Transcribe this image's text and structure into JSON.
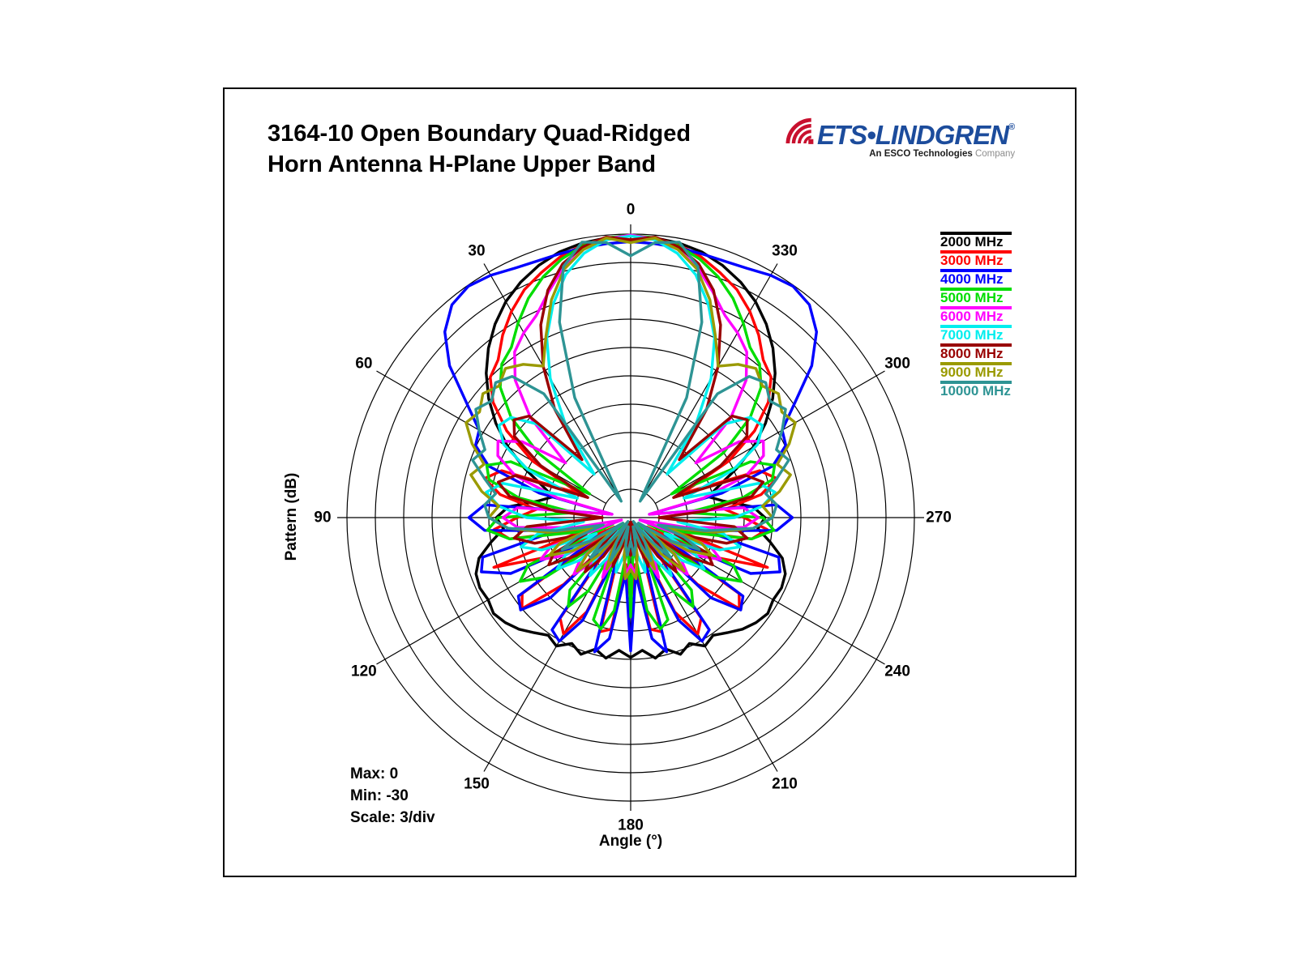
{
  "title": {
    "line1": "3164-10 Open Boundary Quad-Ridged",
    "line2": "Horn Antenna H-Plane Upper Band"
  },
  "logo": {
    "brand": "ETS•LINDGREN",
    "registered": "®",
    "tagline_bold": "An ESCO Technologies",
    "tagline_light": " Company",
    "brand_color": "#1C4C9C",
    "wave_color": "#C8102E"
  },
  "axes": {
    "radial_label": "Pattern  (dB)",
    "angle_label": "Angle  (°)"
  },
  "annotations": {
    "max": "Max: 0",
    "min": "Min: -30",
    "scale": "Scale: 3/div"
  },
  "chart_data": {
    "type": "line-polar",
    "title": "3164-10 Open Boundary Quad-Ridged Horn Antenna H-Plane Upper Band",
    "radial_axis_label": "Pattern (dB)",
    "angle_axis_label": "Angle (°)",
    "radial_max": 0,
    "radial_min": -30,
    "db_per_division": 3,
    "rings": 10,
    "grid_color": "#000000",
    "angle_labels_deg": [
      0,
      30,
      60,
      90,
      120,
      150,
      180,
      210,
      240,
      270,
      300,
      330
    ],
    "angle_direction": "counterclockwise-from-top",
    "sample_step_deg": 5,
    "mirror_symmetry": true,
    "values_unit": "dB relative to peak, sampled 0° to 180° from boresight, mirrored to 360°",
    "series": [
      {
        "name": "2000 MHz",
        "color": "#000000",
        "values": [
          -0.2,
          -0.3,
          -0.5,
          -0.9,
          -1.6,
          -2.5,
          -3.6,
          -5.0,
          -6.6,
          -8.4,
          -10.4,
          -12.6,
          -15.0,
          -17.6,
          -20.0,
          -21.5,
          -20.0,
          -17.0,
          -15.8,
          -16.5,
          -15.0,
          -13.4,
          -12.6,
          -12.4,
          -12.6,
          -12.3,
          -12.7,
          -13.3,
          -14.1,
          -14.8,
          -14.3,
          -15.3,
          -14.6,
          -15.6,
          -14.9,
          -15.9,
          -15.2
        ]
      },
      {
        "name": "3000 MHz",
        "color": "#FF0000",
        "values": [
          -0.15,
          -0.3,
          -0.7,
          -1.4,
          -2.4,
          -3.4,
          -4.8,
          -6.4,
          -8.2,
          -9.0,
          -11.0,
          -14.0,
          -18.0,
          -24.0,
          -15.5,
          -14.0,
          -16.0,
          -20.0,
          -18.0,
          -15.5,
          -17.0,
          -25.0,
          -14.6,
          -20.0,
          -28.0,
          -16.0,
          -15.0,
          -20.0,
          -28.0,
          -17.0,
          -15.8,
          -19.0,
          -27.0,
          -17.5,
          -18.0,
          -25.0,
          -21.0
        ]
      },
      {
        "name": "4000 MHz",
        "color": "#0000FF",
        "values": [
          -0.8,
          -0.9,
          -1.0,
          -1.1,
          -1.1,
          -0.9,
          -0.4,
          -0.1,
          -0.6,
          -2.2,
          -5.0,
          -8.8,
          -11.5,
          -11.9,
          -14.0,
          -20.0,
          -28.0,
          -14.5,
          -12.9,
          -14.5,
          -22.0,
          -13.8,
          -13.2,
          -16.0,
          -26.0,
          -15.5,
          -14.8,
          -18.0,
          -27.0,
          -15.5,
          -14.9,
          -18.0,
          -26.0,
          -15.3,
          -17.0,
          -24.0,
          -15.9
        ]
      },
      {
        "name": "5000 MHz",
        "color": "#00DD00",
        "values": [
          -0.1,
          -0.3,
          -0.8,
          -1.7,
          -2.9,
          -4.4,
          -6.2,
          -8.0,
          -8.8,
          -10.5,
          -13.5,
          -18.0,
          -25.0,
          -16.0,
          -13.8,
          -14.5,
          -18.0,
          -24.0,
          -16.0,
          -14.8,
          -17.0,
          -24.0,
          -28.0,
          -18.0,
          -16.5,
          -19.0,
          -26.0,
          -29.0,
          -20.0,
          -18.5,
          -21.0,
          -28.0,
          -18.5,
          -17.8,
          -20.0,
          -27.0,
          -19.5
        ]
      },
      {
        "name": "6000 MHz",
        "color": "#FF00FF",
        "values": [
          -0.1,
          -0.4,
          -1.2,
          -2.6,
          -4.6,
          -6.4,
          -7.4,
          -8.6,
          -11.0,
          -15.0,
          -21.0,
          -16.0,
          -13.8,
          -14.5,
          -17.0,
          -22.0,
          -28.0,
          -18.0,
          -16.5,
          -18.0,
          -24.0,
          -29.0,
          -21.0,
          -19.5,
          -22.0,
          -28.0,
          -23.0,
          -21.5,
          -24.0,
          -29.0,
          -25.0,
          -23.0,
          -26.0,
          -29.5,
          -26.0,
          -24.0,
          -25.0
        ]
      },
      {
        "name": "7000 MHz",
        "color": "#00EEEE",
        "values": [
          -0.2,
          -0.5,
          -1.6,
          -3.4,
          -6.0,
          -9.0,
          -13.0,
          -18.0,
          -24.0,
          -16.0,
          -13.5,
          -13.0,
          -14.5,
          -18.0,
          -24.0,
          -16.0,
          -14.5,
          -16.0,
          -19.0,
          -25.0,
          -20.0,
          -18.0,
          -20.0,
          -26.0,
          -22.0,
          -20.5,
          -23.0,
          -28.0,
          -24.0,
          -22.5,
          -25.0,
          -29.0,
          -26.0,
          -24.0,
          -26.0,
          -29.0,
          -27.0
        ]
      },
      {
        "name": "8000 MHz",
        "color": "#990000",
        "values": [
          -0.6,
          -0.2,
          -0.9,
          -2.2,
          -4.4,
          -7.5,
          -11.5,
          -16.0,
          -22.0,
          -14.8,
          -13.9,
          -15.0,
          -19.0,
          -25.0,
          -17.0,
          -15.5,
          -17.0,
          -22.0,
          -27.0,
          -19.0,
          -17.5,
          -19.5,
          -25.0,
          -21.0,
          -20.0,
          -23.0,
          -28.0,
          -24.0,
          -22.5,
          -25.0,
          -29.0,
          -26.0,
          -24.5,
          -27.0,
          -29.5,
          -27.0,
          -26.0
        ]
      },
      {
        "name": "9000 MHz",
        "color": "#9A9A00",
        "values": [
          -0.9,
          -0.3,
          -1.2,
          -2.8,
          -5.5,
          -8.8,
          -11.5,
          -10.2,
          -9.4,
          -10.3,
          -9.6,
          -10.5,
          -9.9,
          -11.5,
          -13.5,
          -12.5,
          -14.0,
          -16.0,
          -15.0,
          -17.0,
          -21.0,
          -26.0,
          -22.0,
          -20.5,
          -23.0,
          -28.0,
          -24.0,
          -22.0,
          -25.0,
          -29.0,
          -26.0,
          -24.0,
          -26.5,
          -29.0,
          -26.0,
          -23.5,
          -24.5
        ]
      },
      {
        "name": "10000 MHz",
        "color": "#2E9494",
        "values": [
          -2.3,
          -0.8,
          -0.4,
          -2.5,
          -8.0,
          -16.0,
          -28.0,
          -14.0,
          -10.5,
          -9.8,
          -10.8,
          -10.0,
          -11.5,
          -13.0,
          -12.2,
          -14.0,
          -15.5,
          -14.5,
          -15.0,
          -17.0,
          -22.0,
          -27.0,
          -24.0,
          -22.0,
          -25.0,
          -29.0,
          -26.0,
          -24.0,
          -27.0,
          -29.5,
          -27.0,
          -25.0,
          -27.0,
          -29.0,
          -27.0,
          -26.0,
          -27.5
        ]
      }
    ],
    "legend_position": "right"
  }
}
